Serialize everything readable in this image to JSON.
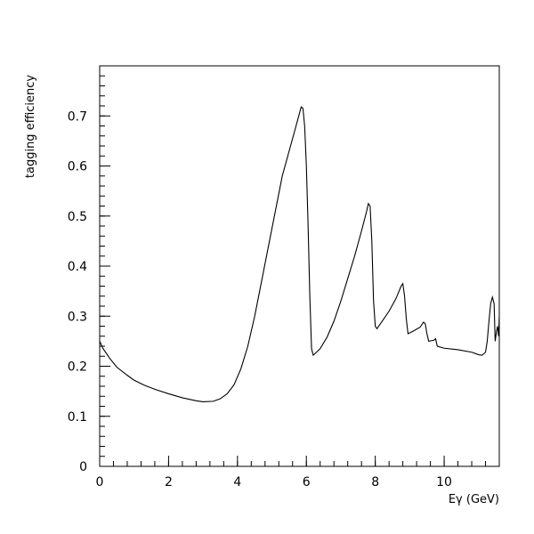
{
  "chart_data": {
    "type": "line",
    "title": "",
    "xlabel": "Eγ (GeV)",
    "ylabel": "tagging efficiency",
    "xlim": [
      0,
      11.6
    ],
    "ylim": [
      0,
      0.8
    ],
    "x_ticks": [
      0,
      2,
      4,
      6,
      8,
      10
    ],
    "y_ticks": [
      0,
      0.1,
      0.2,
      0.3,
      0.4,
      0.5,
      0.6,
      0.7
    ],
    "x_tick_labels": [
      "0",
      "2",
      "4",
      "6",
      "8",
      "10"
    ],
    "y_tick_labels": [
      "0",
      "0.1",
      "0.2",
      "0.3",
      "0.4",
      "0.5",
      "0.6",
      "0.7"
    ],
    "grid": false,
    "legend": "none",
    "series": [
      {
        "points": [
          [
            0.0,
            0.25
          ],
          [
            0.1,
            0.235
          ],
          [
            0.3,
            0.215
          ],
          [
            0.5,
            0.198
          ],
          [
            0.8,
            0.182
          ],
          [
            1.0,
            0.172
          ],
          [
            1.3,
            0.162
          ],
          [
            1.6,
            0.154
          ],
          [
            2.0,
            0.145
          ],
          [
            2.4,
            0.137
          ],
          [
            2.8,
            0.131
          ],
          [
            3.0,
            0.129
          ],
          [
            3.3,
            0.13
          ],
          [
            3.5,
            0.135
          ],
          [
            3.7,
            0.145
          ],
          [
            3.9,
            0.163
          ],
          [
            4.1,
            0.195
          ],
          [
            4.3,
            0.24
          ],
          [
            4.5,
            0.3
          ],
          [
            4.7,
            0.37
          ],
          [
            4.9,
            0.44
          ],
          [
            5.1,
            0.51
          ],
          [
            5.3,
            0.58
          ],
          [
            5.5,
            0.63
          ],
          [
            5.7,
            0.68
          ],
          [
            5.85,
            0.718
          ],
          [
            5.9,
            0.715
          ],
          [
            5.95,
            0.68
          ],
          [
            6.0,
            0.6
          ],
          [
            6.05,
            0.48
          ],
          [
            6.1,
            0.34
          ],
          [
            6.15,
            0.235
          ],
          [
            6.2,
            0.222
          ],
          [
            6.4,
            0.235
          ],
          [
            6.6,
            0.258
          ],
          [
            6.8,
            0.29
          ],
          [
            7.0,
            0.33
          ],
          [
            7.2,
            0.375
          ],
          [
            7.4,
            0.42
          ],
          [
            7.6,
            0.47
          ],
          [
            7.75,
            0.51
          ],
          [
            7.8,
            0.525
          ],
          [
            7.85,
            0.52
          ],
          [
            7.9,
            0.45
          ],
          [
            7.95,
            0.33
          ],
          [
            8.0,
            0.28
          ],
          [
            8.05,
            0.275
          ],
          [
            8.2,
            0.29
          ],
          [
            8.4,
            0.31
          ],
          [
            8.6,
            0.335
          ],
          [
            8.75,
            0.36
          ],
          [
            8.8,
            0.365
          ],
          [
            8.85,
            0.34
          ],
          [
            8.9,
            0.295
          ],
          [
            8.95,
            0.265
          ],
          [
            9.1,
            0.27
          ],
          [
            9.3,
            0.278
          ],
          [
            9.4,
            0.288
          ],
          [
            9.45,
            0.285
          ],
          [
            9.5,
            0.265
          ],
          [
            9.55,
            0.25
          ],
          [
            9.7,
            0.252
          ],
          [
            9.75,
            0.255
          ],
          [
            9.8,
            0.24
          ],
          [
            10.0,
            0.236
          ],
          [
            10.4,
            0.233
          ],
          [
            10.8,
            0.228
          ],
          [
            11.0,
            0.223
          ],
          [
            11.1,
            0.222
          ],
          [
            11.2,
            0.228
          ],
          [
            11.25,
            0.25
          ],
          [
            11.3,
            0.29
          ],
          [
            11.35,
            0.325
          ],
          [
            11.4,
            0.338
          ],
          [
            11.45,
            0.325
          ],
          [
            11.48,
            0.25
          ],
          [
            11.52,
            0.27
          ],
          [
            11.55,
            0.28
          ],
          [
            11.58,
            0.26
          ],
          [
            11.6,
            0.3
          ]
        ]
      }
    ]
  }
}
